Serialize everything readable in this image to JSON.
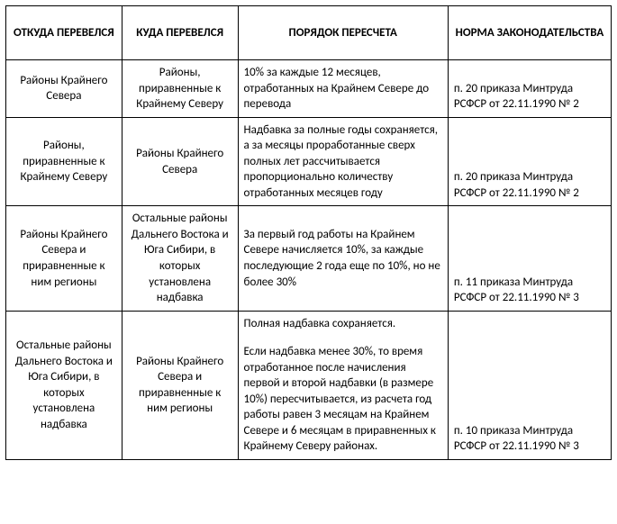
{
  "table": {
    "headers": {
      "from": "ОТКУДА ПЕРЕВЕЛСЯ",
      "to": "КУДА ПЕРЕВЕЛСЯ",
      "order": "ПОРЯДОК ПЕРЕСЧЕТА",
      "law": "НОРМА ЗАКОНОДАТЕЛЬСТВА"
    },
    "rows": [
      {
        "from": "Районы Крайнего Севера",
        "to": "Районы, приравненные к Крайнему Северу",
        "order": "10% за каждые 12 месяцев, отработанных  на  Крайнем Севере до перевода",
        "law": "п. 20 приказа Минтруда РСФСР от 22.11.1990 № 2"
      },
      {
        "from": "Районы, приравненные к Крайнему Северу",
        "to": "Районы Крайнего Севера",
        "order": "Надбавка за полные годы сохраняется, а за месяцы проработанные сверх полных лет  рассчитывается пропорционально количеству отработанных месяцев году",
        "law": "п. 20 приказа Минтруда РСФСР от 22.11.1990 № 2"
      },
      {
        "from": "Районы Крайнего Севера и приравненные к ним регионы",
        "to": "Остальные районы Дальнего Востока и Юга Сибири, в которых установлена надбавка",
        "order": "За первый год работы на Крайнем Севере начисляется 10%, за каждые последующие 2 года еще по 10%, но не более 30%",
        "law": "п. 11 приказа Минтруда РСФСР от 22.11.1990 № 3"
      },
      {
        "from": "Остальные районы Дальнего Востока и Юга Сибири, в которых установлена надбавка",
        "to": "Районы Крайнего Севера и приравненные к ним регионы",
        "order_p1": "Полная надбавка сохраняется.",
        "order_p2": "Если надбавка менее 30%, то время отработанное после начисления первой и второй надбавки (в размере 10%) пересчитывается, из расчета год работы равен 3 месяцам на Крайнем Севере и 6 месяцам в приравненных к Крайнему Северу районах.",
        "law": "п. 10 приказа Минтруда РСФСР от 22.11.1990 № 3"
      }
    ],
    "style": {
      "border_color": "#000000",
      "background_color": "#ffffff",
      "header_font_weight": "bold",
      "font_family": "Calibri",
      "cell_font_size_pt": 10
    }
  }
}
